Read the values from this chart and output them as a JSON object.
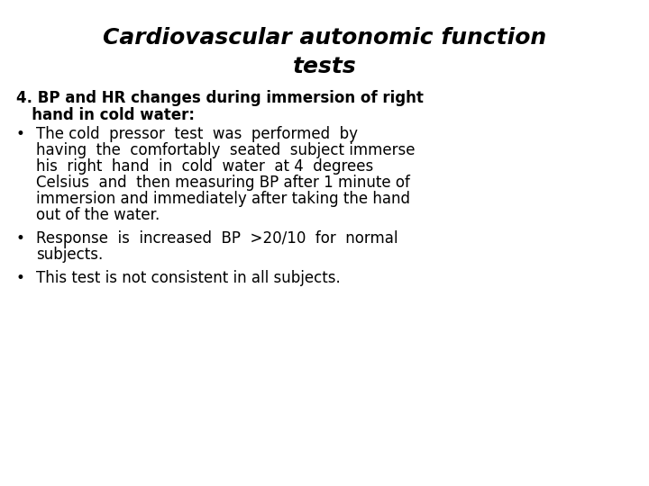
{
  "title_line1": "Cardiovascular autonomic function",
  "title_line2": "tests",
  "title_fontsize": 18,
  "title_style": "italic",
  "title_weight": "bold",
  "background_color": "#ffffff",
  "text_color": "#000000",
  "heading_line1": "4. BP and HR changes during immersion of right",
  "heading_line2": "   hand in cold water:",
  "heading_fontsize": 12,
  "heading_weight": "bold",
  "bullet1_lines": [
    "The cold  pressor  test  was  performed  by",
    "having  the  comfortably  seated  subject immerse",
    "his  right  hand  in  cold  water  at 4  degrees",
    "Celsius  and  then measuring BP after 1 minute of",
    "immersion and immediately after taking the hand",
    "out of the water."
  ],
  "bullet2_lines": [
    "Response  is  increased  BP  >20/10  for  normal",
    "subjects."
  ],
  "bullet3_lines": [
    "This test is not consistent in all subjects."
  ],
  "bullet_fontsize": 12,
  "bullet_char": "•",
  "fig_width": 7.2,
  "fig_height": 5.4,
  "dpi": 100
}
